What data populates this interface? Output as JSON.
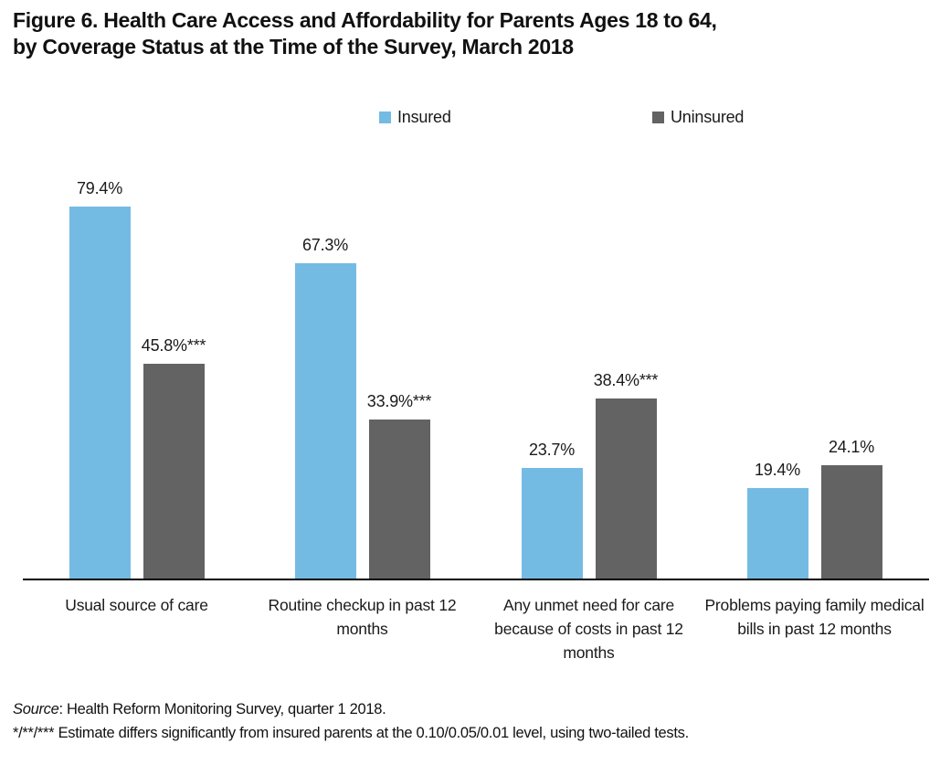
{
  "title": {
    "line1": "Figure 6. Health Care Access and Affordability for Parents Ages 18 to 64,",
    "line2": "by Coverage Status at the Time of the Survey, March 2018"
  },
  "legend": {
    "items": [
      {
        "label": "Insured",
        "color": "#74BBE4"
      },
      {
        "label": "Uninsured",
        "color": "#636363"
      }
    ]
  },
  "chart_data": {
    "type": "bar",
    "title": "Health Care Access and Affordability for Parents Ages 18 to 64, by Coverage Status at the Time of the Survey, March 2018",
    "categories": [
      "Usual source of care",
      "Routine checkup in past 12 months",
      "Any unmet need for care because of costs in past 12 months",
      "Problems paying family medical bills in past 12 months"
    ],
    "series": [
      {
        "name": "Insured",
        "color": "#74BBE4",
        "values": [
          79.4,
          67.3,
          23.7,
          19.4
        ],
        "labels": [
          "79.4%",
          "67.3%",
          "23.7%",
          "19.4%"
        ]
      },
      {
        "name": "Uninsured",
        "color": "#636363",
        "values": [
          45.8,
          33.9,
          38.4,
          24.1
        ],
        "labels": [
          "45.8%***",
          "33.9%***",
          "38.4%***",
          "24.1%"
        ]
      }
    ],
    "unit": "percent",
    "xlabel": "",
    "ylabel": "",
    "ylim": [
      0,
      85
    ],
    "y_axis_visible": false,
    "gridlines": false,
    "legend_position": "top"
  },
  "footer": {
    "source_label": "Source",
    "source_rest": ": Health Reform Monitoring Survey, quarter 1 2018.",
    "note": "*/**/*** Estimate differs significantly from insured parents at the 0.10/0.05/0.01 level, using two-tailed tests."
  },
  "colors": {
    "insured": "#74BBE4",
    "uninsured": "#636363",
    "axis": "#000000",
    "text": "#1a1a1a"
  }
}
